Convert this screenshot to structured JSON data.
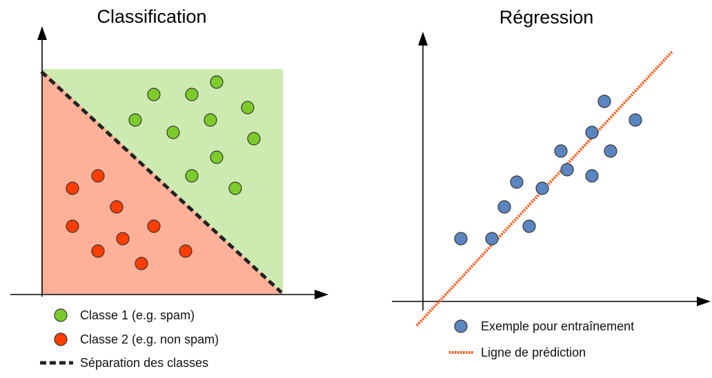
{
  "panels": {
    "classification": {
      "title": "Classification",
      "legend": {
        "class1": "Classe 1 (e.g. spam)",
        "class2": "Classe 2 (e.g. non spam)",
        "separation": "Séparation des classes"
      }
    },
    "regression": {
      "title": "Régression",
      "legend": {
        "examples": "Exemple pour entraînement",
        "prediction": "Ligne de prédiction"
      }
    }
  },
  "colors": {
    "class1_fill": "#7ccb2a",
    "class1_region": "#cdebb0",
    "class2_fill": "#ff3d00",
    "class2_region": "#ffb098",
    "separation_line": "#222222",
    "regression_point": "#5a85c0",
    "prediction_line": "#ff5a1a",
    "axis": "#000000"
  },
  "chart_data": [
    {
      "type": "scatter",
      "title": "Classification",
      "xlabel": "",
      "ylabel": "",
      "series": [
        {
          "name": "Classe 1 (e.g. spam)",
          "points": [
            [
              223,
              137
            ],
            [
              278,
              137
            ],
            [
              314,
              119
            ],
            [
              359,
              156
            ],
            [
              196,
              174
            ],
            [
              251,
              192
            ],
            [
              305,
              174
            ],
            [
              368,
              201
            ],
            [
              314,
              228
            ],
            [
              278,
              255
            ],
            [
              341,
              273
            ]
          ]
        },
        {
          "name": "Classe 2 (e.g. non spam)",
          "points": [
            [
              142,
              255
            ],
            [
              105,
              273
            ],
            [
              169,
              300
            ],
            [
              105,
              328
            ],
            [
              223,
              328
            ],
            [
              178,
              346
            ],
            [
              142,
              364
            ],
            [
              269,
              364
            ],
            [
              205,
              382
            ]
          ]
        }
      ],
      "separation": [
        [
          60,
          104
        ],
        [
          408,
          424
        ]
      ]
    },
    {
      "type": "scatter",
      "title": "Régression",
      "xlabel": "",
      "ylabel": "",
      "series": [
        {
          "name": "Exemple pour entraînement",
          "points": [
            [
              668,
              346
            ],
            [
              713,
              346
            ],
            [
              731,
              300
            ],
            [
              749,
              264
            ],
            [
              767,
              328
            ],
            [
              786,
              273
            ],
            [
              813,
              219
            ],
            [
              822,
              246
            ],
            [
              858,
              192
            ],
            [
              858,
              255
            ],
            [
              876,
              147
            ],
            [
              885,
              219
            ],
            [
              921,
              174
            ]
          ]
        }
      ],
      "prediction_line": [
        [
          604,
          472
        ],
        [
          974,
          75
        ]
      ]
    }
  ]
}
